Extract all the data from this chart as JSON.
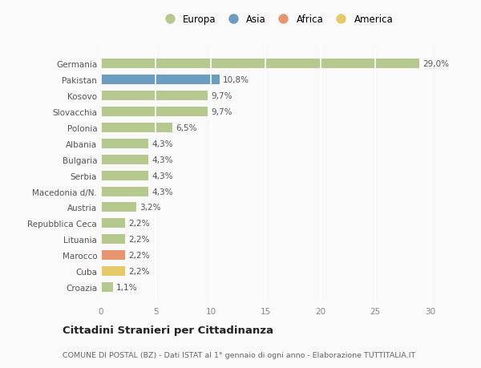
{
  "categories": [
    "Croazia",
    "Cuba",
    "Marocco",
    "Lituania",
    "Repubblica Ceca",
    "Austria",
    "Macedonia d/N.",
    "Serbia",
    "Bulgaria",
    "Albania",
    "Polonia",
    "Slovacchia",
    "Kosovo",
    "Pakistan",
    "Germania"
  ],
  "values": [
    1.1,
    2.2,
    2.2,
    2.2,
    2.2,
    3.2,
    4.3,
    4.3,
    4.3,
    4.3,
    6.5,
    9.7,
    9.7,
    10.8,
    29.0
  ],
  "colors": [
    "#b5c98e",
    "#e8c96a",
    "#e8956d",
    "#b5c98e",
    "#b5c98e",
    "#b5c98e",
    "#b5c98e",
    "#b5c98e",
    "#b5c98e",
    "#b5c98e",
    "#b5c98e",
    "#b5c98e",
    "#b5c98e",
    "#6b9dc2",
    "#b5c98e"
  ],
  "labels": [
    "1,1%",
    "2,2%",
    "2,2%",
    "2,2%",
    "2,2%",
    "3,2%",
    "4,3%",
    "4,3%",
    "4,3%",
    "4,3%",
    "6,5%",
    "9,7%",
    "9,7%",
    "10,8%",
    "29,0%"
  ],
  "legend": [
    {
      "label": "Europa",
      "color": "#b5c98e"
    },
    {
      "label": "Asia",
      "color": "#6b9dc2"
    },
    {
      "label": "Africa",
      "color": "#e8956d"
    },
    {
      "label": "America",
      "color": "#e8c96a"
    }
  ],
  "title": "Cittadini Stranieri per Cittadinanza",
  "subtitle": "COMUNE DI POSTAL (BZ) - Dati ISTAT al 1° gennaio di ogni anno - Elaborazione TUTTITALIA.IT",
  "xlim": [
    0,
    32
  ],
  "xticks": [
    0,
    5,
    10,
    15,
    20,
    25,
    30
  ],
  "background_color": "#f9f9f9",
  "grid_color": "#e0e0e0",
  "bar_height": 0.6
}
